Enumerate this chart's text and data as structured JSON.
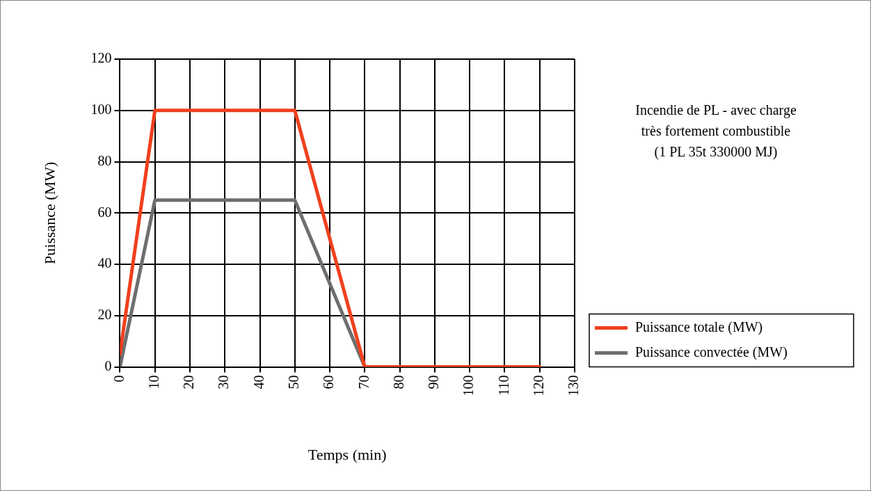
{
  "chart_data": {
    "type": "line",
    "xlabel": "Temps (min)",
    "ylabel": "Puissance (MW)",
    "annotations": [
      "Incendie de PL - avec charge\ntrès fortement combustible\n(1 PL 35t 330000 MJ)"
    ],
    "series": [
      {
        "name": "Puissance totale (MW)",
        "color": "#f0401e",
        "x": [
          0,
          10,
          50,
          70,
          120
        ],
        "values": [
          5,
          100,
          100,
          0,
          0
        ]
      },
      {
        "name": "Puissance convectée (MW)",
        "color": "#6d6e71",
        "x": [
          0,
          10,
          50,
          70,
          120
        ],
        "values": [
          0,
          65,
          65,
          0,
          0
        ]
      }
    ],
    "xlim": [
      0,
      130
    ],
    "xticks": [
      0,
      10,
      20,
      30,
      40,
      50,
      60,
      70,
      80,
      90,
      100,
      110,
      120,
      130
    ],
    "ylim": [
      0,
      120
    ],
    "yticks": [
      0,
      20,
      40,
      60,
      80,
      100,
      120
    ],
    "grid": true,
    "legend": "bottom right",
    "marker": "none",
    "line_style": "solid"
  }
}
